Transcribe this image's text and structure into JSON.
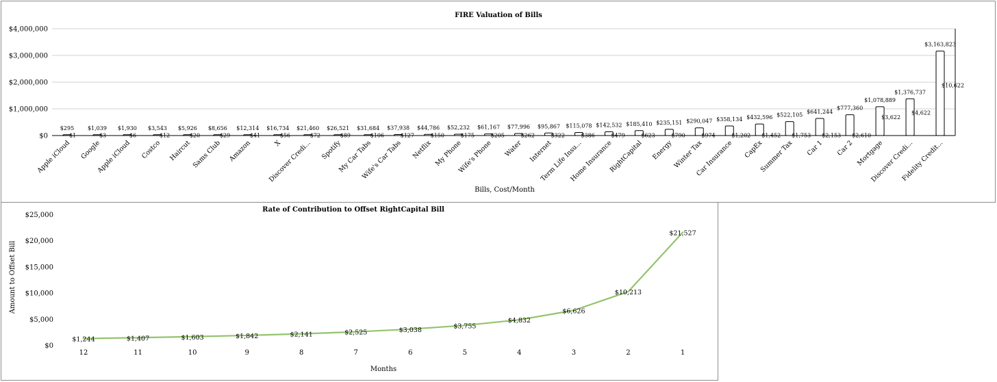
{
  "charts": {
    "fire": {
      "type": "bar",
      "title": "FIRE Valuation of Bills",
      "xlabel": "Bills, Cost/Month",
      "y_ticks": [
        "$0",
        "$1,000,000",
        "$2,000,000",
        "$3,000,000",
        "$4,000,000"
      ],
      "ylim": [
        0,
        4000000
      ]
    },
    "rate": {
      "type": "line",
      "title": "Rate of Contribution to Offset RightCapital Bill",
      "xlabel": "Months",
      "ylabel": "Amount to Offset Bill",
      "y_ticks": [
        "$0",
        "$5,000",
        "$10,000",
        "$15,000",
        "$20,000",
        "$25,000"
      ],
      "ylim": [
        0,
        25000
      ]
    }
  },
  "chart_data": [
    {
      "type": "bar",
      "title": "FIRE Valuation of Bills",
      "xlabel": "Bills, Cost/Month",
      "ylabel": "",
      "ylim": [
        0,
        4000000
      ],
      "grid": true,
      "categories": [
        "Apple iCloud",
        "Google",
        "Apple iCloud",
        "Costco",
        "Haircut",
        "Sams Club",
        "Amazon",
        "X",
        "Discover Credi...",
        "Spotify",
        "My Car Tabs",
        "Wife's Car Tabs",
        "Netflix",
        "My Phone",
        "Wife's Phone",
        "Water",
        "Internet",
        "Term Life Insu...",
        "Home Insurance",
        "RightCapital",
        "Energy",
        "Winter Tax",
        "Car Insurance",
        "CapEx",
        "Summer Tax",
        "Car 1",
        "Car 2",
        "Mortgage",
        "Discover Credi...",
        "Fidelity Credit..."
      ],
      "values": [
        295,
        1039,
        1930,
        3543,
        5926,
        8656,
        12314,
        16734,
        21460,
        26521,
        31684,
        37938,
        44786,
        52232,
        61167,
        77996,
        95867,
        115078,
        142532,
        185410,
        235151,
        290047,
        358134,
        432596,
        522105,
        641244,
        777360,
        1078889,
        1376737,
        3163823
      ],
      "value_labels": [
        "$295",
        "$1,039",
        "$1,930",
        "$3,543",
        "$5,926",
        "$8,656",
        "$12,314",
        "$16,734",
        "$21,460",
        "$26,521",
        "$31,684",
        "$37,938",
        "$44,786",
        "$52,232",
        "$61,167",
        "$77,996",
        "$95,867",
        "$115,078",
        "$142,532",
        "$185,410",
        "$235,151",
        "$290,047",
        "$358,134",
        "$432,596",
        "$522,105",
        "$641,244",
        "$777,360",
        "$1,078,889",
        "$1,376,737",
        "$3,163,823"
      ],
      "monthly_costs": [
        "$1",
        "$3",
        "$6",
        "$12",
        "$20",
        "$29",
        "$41",
        "$56",
        "$72",
        "$89",
        "$106",
        "$127",
        "$150",
        "$175",
        "$205",
        "$262",
        "$322",
        "$386",
        "$479",
        "$623",
        "$790",
        "$974",
        "$1,202",
        "$1,452",
        "$1,753",
        "$2,153",
        "$2,610",
        "$3,622",
        "$4,622",
        "$10,622"
      ]
    },
    {
      "type": "line",
      "title": "Rate of Contribution to Offset RightCapital Bill",
      "xlabel": "Months",
      "ylabel": "Amount to Offset Bill",
      "ylim": [
        0,
        25000
      ],
      "grid": false,
      "color": "#92c46c",
      "categories": [
        "12",
        "11",
        "10",
        "9",
        "8",
        "7",
        "6",
        "5",
        "4",
        "3",
        "2",
        "1"
      ],
      "values": [
        1244,
        1407,
        1603,
        1842,
        2141,
        2525,
        3038,
        3755,
        4832,
        6626,
        10213,
        21527
      ],
      "value_labels": [
        "$1,244",
        "$1,407",
        "$1,603",
        "$1,842",
        "$2,141",
        "$2,525",
        "$3,038",
        "$3,755",
        "$4,832",
        "$6,626",
        "$10,213",
        "$21,527"
      ]
    }
  ]
}
